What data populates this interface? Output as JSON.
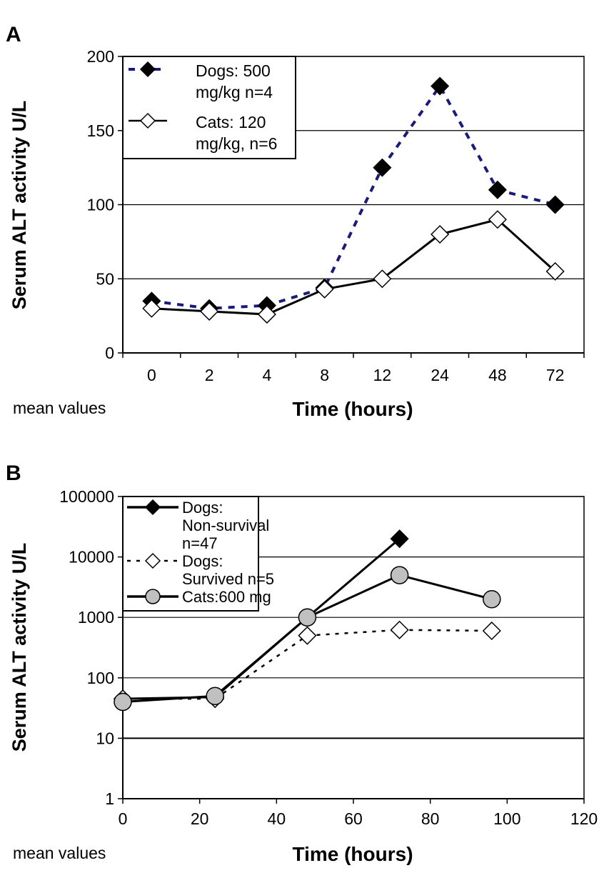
{
  "chart_data": [
    {
      "panel_label": "A",
      "type": "line",
      "x_type": "category",
      "categories": [
        "0",
        "2",
        "4",
        "8",
        "12",
        "24",
        "48",
        "72"
      ],
      "xlabel": "Time (hours)",
      "ylabel": "Serum ALT activity U/L",
      "note": "mean values",
      "ylim": [
        0,
        200
      ],
      "yticks": [
        0,
        50,
        100,
        150,
        200
      ],
      "ytick_labels": [
        "0",
        "50",
        "100",
        "150",
        "200"
      ],
      "grid": "horizontal",
      "legend_position": "top-left",
      "series": [
        {
          "name": "Dogs: 500 mg/kg n=4",
          "legend_lines": [
            "Dogs: 500",
            "mg/kg n=4"
          ],
          "values": [
            35,
            30,
            32,
            44,
            125,
            180,
            110,
            100
          ],
          "line": "dashed",
          "color": "#1a1a7a",
          "marker": "diamond",
          "marker_fill": "#000000"
        },
        {
          "name": "Cats: 120 mg/kg, n=6",
          "legend_lines": [
            "Cats: 120",
            "mg/kg, n=6"
          ],
          "values": [
            30,
            28,
            26,
            43,
            50,
            80,
            90,
            55
          ],
          "line": "solid",
          "color": "#000000",
          "marker": "diamond",
          "marker_fill": "#ffffff"
        }
      ]
    },
    {
      "panel_label": "B",
      "type": "line",
      "x_type": "numeric",
      "xlabel": "Time (hours)",
      "ylabel": "Serum ALT activity U/L",
      "note": "mean values",
      "xlim": [
        0,
        120
      ],
      "xticks": [
        0,
        20,
        40,
        60,
        80,
        100,
        120
      ],
      "xtick_labels": [
        "0",
        "20",
        "40",
        "60",
        "80",
        "100",
        "120"
      ],
      "yscale": "log",
      "ylim": [
        1,
        100000
      ],
      "yticks": [
        1,
        10,
        100,
        1000,
        10000,
        100000
      ],
      "ytick_labels": [
        "1",
        "10",
        "100",
        "1000",
        "10000",
        "100000"
      ],
      "grid": "horizontal",
      "legend_position": "top-left",
      "series": [
        {
          "name": "Dogs: Non-survival n=47",
          "legend_lines": [
            "Dogs:",
            "Non-survival",
            "n=47"
          ],
          "x": [
            0,
            24,
            48,
            72
          ],
          "values": [
            45,
            48,
            1000,
            20000
          ],
          "line": "solid",
          "color": "#000000",
          "marker": "diamond",
          "marker_fill": "#000000"
        },
        {
          "name": "Dogs: Survived n=5",
          "legend_lines": [
            "Dogs:",
            "Survived n=5"
          ],
          "x": [
            0,
            24,
            48,
            72,
            96
          ],
          "values": [
            45,
            45,
            500,
            620,
            600
          ],
          "line": "dotted",
          "color": "#000000",
          "marker": "diamond",
          "marker_fill": "#ffffff"
        },
        {
          "name": "Cats:600 mg",
          "legend_lines": [
            "Cats:600 mg"
          ],
          "x": [
            0,
            24,
            48,
            72,
            96
          ],
          "values": [
            40,
            50,
            1000,
            5000,
            2000
          ],
          "line": "solid",
          "color": "#000000",
          "marker": "circle",
          "marker_fill": "#c0c0c0"
        }
      ]
    }
  ]
}
